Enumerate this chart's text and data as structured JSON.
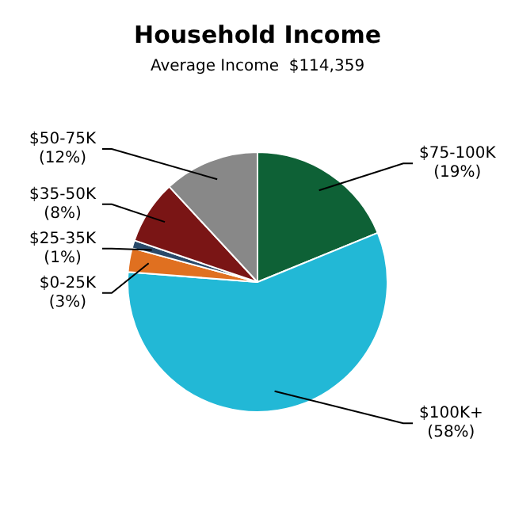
{
  "chart_data": {
    "type": "pie",
    "title": "Household Income",
    "subtitle": "Average Income  $114,359",
    "categories": [
      "$75-100K",
      "$100K+",
      "$0-25K",
      "$25-35K",
      "$35-50K",
      "$50-75K"
    ],
    "values": [
      19,
      58,
      3,
      1,
      8,
      12
    ],
    "value_labels": [
      "(19%)",
      "(58%)",
      "(3%)",
      "(1%)",
      "(8%)",
      "(12%)"
    ],
    "colors": [
      "#0e6136",
      "#22b8d6",
      "#e07020",
      "#2a4a6a",
      "#7a1515",
      "#888888"
    ],
    "legend": false
  }
}
